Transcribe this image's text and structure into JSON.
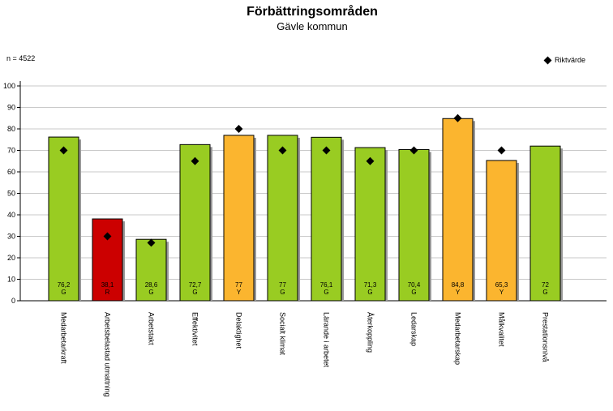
{
  "chart_data": {
    "type": "bar",
    "title": "Förbättringsområden",
    "subtitle": "Gävle kommun",
    "n_label": "n = 4522",
    "legend_label": "Riktvärde",
    "legend_position": "top-right",
    "ylim": [
      0,
      100
    ],
    "yticks": [
      0,
      10,
      20,
      30,
      40,
      50,
      60,
      70,
      80,
      90,
      100
    ],
    "grid": true,
    "categories": [
      "Medarbetarkraft",
      "Arbetsbelastad utmattning",
      "Arbetstakt",
      "Effektivitet",
      "Delaktighet",
      "Socialt klimat",
      "Lärande i arbetet",
      "Återkoppling",
      "Ledarskap",
      "Medarbetarskap",
      "Målkvalitet",
      "Prestationsnivå"
    ],
    "values": [
      76.2,
      38.1,
      28.6,
      72.7,
      77,
      77,
      76.1,
      71.3,
      70.4,
      84.8,
      65.3,
      72
    ],
    "value_labels": [
      "76,2",
      "38,1",
      "28,6",
      "72,7",
      "77",
      "77",
      "76,1",
      "71,3",
      "70,4",
      "84,8",
      "65,3",
      "72"
    ],
    "status": [
      "G",
      "R",
      "G",
      "G",
      "Y",
      "G",
      "G",
      "G",
      "G",
      "Y",
      "Y",
      "G"
    ],
    "target_values": [
      70,
      30,
      27,
      65,
      80,
      70,
      70,
      65,
      70,
      85,
      70,
      null
    ],
    "colors": {
      "G": "#99cc22",
      "Y": "#fbb52f",
      "R": "#cc0000",
      "shadow": "#999999",
      "grid": "#c8c8c8",
      "marker": "#000000"
    }
  }
}
